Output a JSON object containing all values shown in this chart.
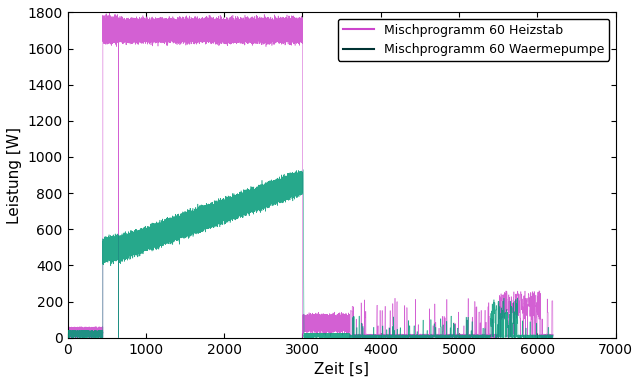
{
  "title": "",
  "xlabel": "Zeit [s]",
  "ylabel": "Leistung [W]",
  "xlim": [
    0,
    7000
  ],
  "ylim": [
    0,
    1800
  ],
  "xticks": [
    0,
    1000,
    2000,
    3000,
    4000,
    5000,
    6000,
    7000
  ],
  "yticks": [
    0,
    200,
    400,
    600,
    800,
    1000,
    1200,
    1400,
    1600,
    1800
  ],
  "legend_labels": [
    "Mischprogramm 60 Heizstab",
    "Mischprogramm 60 Waermepumpe"
  ],
  "color_heizstab": "#CC44CC",
  "color_waermepumpe": "#009977",
  "legend_color_w": "#003333",
  "background_color": "#ffffff",
  "figsize": [
    6.4,
    3.84
  ],
  "dpi": 100,
  "seed": 42,
  "heizstab_base": 1700,
  "heizstab_osc_amp": 60,
  "heizstab_osc_freq": 0.8,
  "waermepumpe_start": 480,
  "waermepumpe_end": 860,
  "waermepumpe_osc_amp": 60,
  "waermepumpe_osc_freq": 0.8,
  "phase1_end": 450,
  "spike_time": 650,
  "phase2_end": 3000,
  "waermepumpe_drop": 3600
}
